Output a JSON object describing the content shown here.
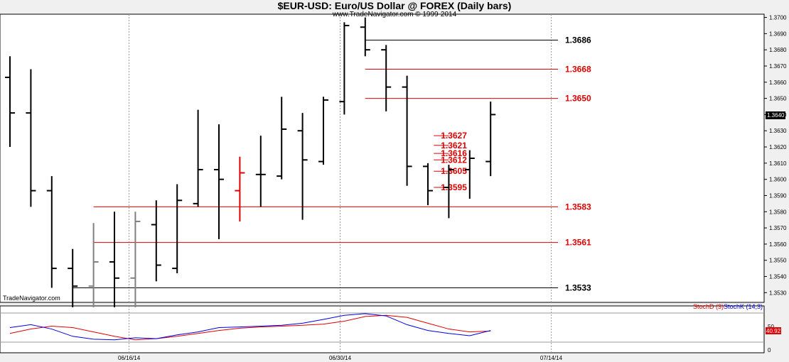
{
  "chart_data": {
    "type": "ohlc",
    "title": "$EUR-USD:  Euro/US Dollar @ FOREX  (Daily bars)",
    "subtitle": "www.TradeNavigator.com © 1999-2014",
    "watermark": "TradeNavigator.com",
    "ylim": [
      1.3524,
      1.3702
    ],
    "y_ticks": [
      "1.3700",
      "1.3690",
      "1.3680",
      "1.3670",
      "1.3660",
      "1.3650",
      "1.3640",
      "1.3630",
      "1.3620",
      "1.3610",
      "1.3600",
      "1.3590",
      "1.3580",
      "1.3570",
      "1.3560",
      "1.3550",
      "1.3540",
      "1.3530"
    ],
    "last_price_label": "1.3640",
    "x_tick_labels": [
      "06/16/14",
      "06/30/14",
      "07/14/14"
    ],
    "bars": [
      {
        "o": 1.3663,
        "h": 1.3676,
        "l": 1.362,
        "c": 1.3641,
        "color": "#000000"
      },
      {
        "o": 1.3641,
        "h": 1.3668,
        "l": 1.3583,
        "c": 1.3593,
        "color": "#000000"
      },
      {
        "o": 1.3593,
        "h": 1.3602,
        "l": 1.3533,
        "c": 1.3545,
        "color": "#000000"
      },
      {
        "o": 1.3545,
        "h": 1.3557,
        "l": 1.3521,
        "c": 1.3534,
        "color": "#000000"
      },
      {
        "o": 1.3534,
        "h": 1.3573,
        "l": 1.3521,
        "c": 1.3549,
        "color": "#808080"
      },
      {
        "o": 1.3549,
        "h": 1.358,
        "l": 1.3521,
        "c": 1.3539,
        "color": "#000000"
      },
      {
        "o": 1.3539,
        "h": 1.358,
        "l": 1.3521,
        "c": 1.3574,
        "color": "#808080"
      },
      {
        "o": 1.3572,
        "h": 1.3587,
        "l": 1.3537,
        "c": 1.3547,
        "color": "#000000"
      },
      {
        "o": 1.3545,
        "h": 1.3597,
        "l": 1.3542,
        "c": 1.3587,
        "color": "#000000"
      },
      {
        "o": 1.3585,
        "h": 1.3643,
        "l": 1.3583,
        "c": 1.3606,
        "color": "#000000"
      },
      {
        "o": 1.3606,
        "h": 1.3634,
        "l": 1.3563,
        "c": 1.36,
        "color": "#000000"
      },
      {
        "o": 1.3593,
        "h": 1.3614,
        "l": 1.3574,
        "c": 1.3604,
        "color": "#e00000"
      },
      {
        "o": 1.3603,
        "h": 1.3627,
        "l": 1.3583,
        "c": 1.3603,
        "color": "#000000"
      },
      {
        "o": 1.3602,
        "h": 1.3651,
        "l": 1.36,
        "c": 1.3631,
        "color": "#000000"
      },
      {
        "o": 1.363,
        "h": 1.3641,
        "l": 1.3575,
        "c": 1.3612,
        "color": "#000000"
      },
      {
        "o": 1.3611,
        "h": 1.3651,
        "l": 1.3609,
        "c": 1.3649,
        "color": "#000000"
      },
      {
        "o": 1.3648,
        "h": 1.3697,
        "l": 1.364,
        "c": 1.3695,
        "color": "#000000"
      },
      {
        "o": 1.3694,
        "h": 1.37,
        "l": 1.3676,
        "c": 1.368,
        "color": "#000000"
      },
      {
        "o": 1.368,
        "h": 1.3683,
        "l": 1.3642,
        "c": 1.3657,
        "color": "#000000"
      },
      {
        "o": 1.3657,
        "h": 1.3664,
        "l": 1.3596,
        "c": 1.3608,
        "color": "#000000"
      },
      {
        "o": 1.3608,
        "h": 1.361,
        "l": 1.3584,
        "c": 1.3593,
        "color": "#000000"
      },
      {
        "o": 1.3595,
        "h": 1.3609,
        "l": 1.3576,
        "c": 1.3606,
        "color": "#000000"
      },
      {
        "o": 1.3606,
        "h": 1.3618,
        "l": 1.3588,
        "c": 1.3613,
        "color": "#000000"
      },
      {
        "o": 1.3611,
        "h": 1.3648,
        "l": 1.3602,
        "c": 1.364,
        "color": "#000000"
      }
    ],
    "levels": [
      {
        "value": 1.3686,
        "label": "1.3686",
        "color": "#000000",
        "from_bar": 17,
        "to_bar": 30
      },
      {
        "value": 1.3668,
        "label": "1.3668",
        "color": "#e00000",
        "from_bar": 17,
        "to_bar": 30
      },
      {
        "value": 1.365,
        "label": "1.3650",
        "color": "#e00000",
        "from_bar": 17,
        "to_bar": 30
      },
      {
        "value": 1.3627,
        "label": "1.3627",
        "color": "#e00000",
        "from_bar": 21,
        "to_bar": 23
      },
      {
        "value": 1.3621,
        "label": "1.3621",
        "color": "#e00000",
        "from_bar": 21,
        "to_bar": 23
      },
      {
        "value": 1.3616,
        "label": "1.3616",
        "color": "#e00000",
        "from_bar": 21,
        "to_bar": 23
      },
      {
        "value": 1.3612,
        "label": "1.3612",
        "color": "#e00000",
        "from_bar": 21,
        "to_bar": 23
      },
      {
        "value": 1.3605,
        "label": "1.3605",
        "color": "#e00000",
        "from_bar": 21,
        "to_bar": 23
      },
      {
        "value": 1.3595,
        "label": "1.3595",
        "color": "#e00000",
        "from_bar": 21,
        "to_bar": 23
      },
      {
        "value": 1.3583,
        "label": "1.3583",
        "color": "#e00000",
        "from_bar": 4,
        "to_bar": 30
      },
      {
        "value": 1.3561,
        "label": "1.3561",
        "color": "#e00000",
        "from_bar": 4,
        "to_bar": 30
      },
      {
        "value": 1.3533,
        "label": "1.3533",
        "color": "#000000",
        "from_bar": 3,
        "to_bar": 30
      }
    ],
    "stochastic": {
      "legend": [
        {
          "label": "StochD (3)",
          "color": "#e00000"
        },
        {
          "label": "StochK (14,3)",
          "color": "#0000e0"
        }
      ],
      "ylim": [
        0,
        100
      ],
      "ref_tick": "50",
      "last_value_label": "40.92",
      "bottom_tick": "0",
      "d_values": [
        30,
        45,
        55,
        50,
        35,
        20,
        8,
        12,
        20,
        30,
        40,
        48,
        52,
        55,
        58,
        62,
        72,
        88,
        92,
        85,
        65,
        45,
        35,
        38
      ],
      "k_values": [
        50,
        60,
        45,
        20,
        10,
        8,
        15,
        12,
        25,
        35,
        50,
        52,
        55,
        58,
        65,
        78,
        92,
        98,
        90,
        60,
        40,
        30,
        22,
        40
      ]
    }
  }
}
